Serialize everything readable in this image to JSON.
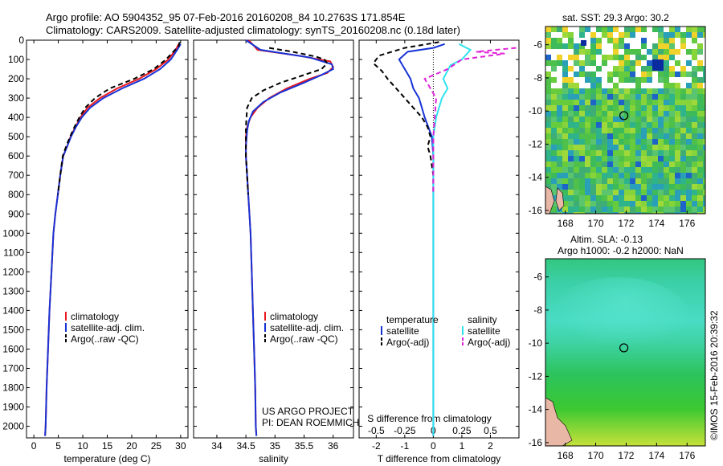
{
  "title_line1": "Argo profile: AO 5904352_95 07-Feb-2016 20160208_84 10.2763S 171.854E",
  "title_line2": "Climatology: CARS2009. Satellite-adjusted climatology: synTS_20160208.nc (0.18d later)",
  "credits": {
    "line1": "US ARGO PROJECT",
    "line2": "PI: DEAN ROEMMICH"
  },
  "side_stamp": "©IMOS 15-Feb-2016 20:39:32",
  "colors": {
    "climatology": "#e8191f",
    "satellite": "#1733d6",
    "argo": "#000000",
    "sal_satellite": "#2fe3ee",
    "sal_argo": "#e021d8"
  },
  "chart_data": [
    {
      "type": "line",
      "xlabel": "temperature (deg C)",
      "ylabel": "",
      "xlim": [
        -1.5,
        31.5
      ],
      "ylim": [
        2060,
        0
      ],
      "xticks": [
        0,
        5,
        10,
        15,
        20,
        25,
        30
      ],
      "yticks": [
        0,
        100,
        200,
        300,
        400,
        500,
        600,
        700,
        800,
        900,
        1000,
        1100,
        1200,
        1300,
        1400,
        1500,
        1600,
        1700,
        1800,
        1900,
        2000
      ],
      "legend": {
        "placement": "lower-left",
        "entries": [
          "climatology",
          "satellite-adj. clim.",
          "Argo(..raw -QC)"
        ]
      },
      "series": [
        {
          "name": "climatology",
          "color": "#e8191f",
          "dash": "solid",
          "points": [
            [
              29.6,
              20
            ],
            [
              29.0,
              50
            ],
            [
              27.5,
              100
            ],
            [
              25.0,
              150
            ],
            [
              21.5,
              200
            ],
            [
              17.0,
              250
            ],
            [
              13.5,
              300
            ],
            [
              11.0,
              350
            ],
            [
              9.5,
              400
            ],
            [
              8.5,
              450
            ],
            [
              7.5,
              500
            ],
            [
              6.8,
              550
            ],
            [
              6.0,
              600
            ],
            [
              5.4,
              700
            ],
            [
              4.9,
              800
            ],
            [
              4.4,
              900
            ],
            [
              4.0,
              1000
            ],
            [
              3.6,
              1200
            ],
            [
              3.2,
              1400
            ],
            [
              2.9,
              1600
            ],
            [
              2.6,
              1800
            ],
            [
              2.4,
              2000
            ],
            [
              2.3,
              2050
            ]
          ]
        },
        {
          "name": "satellite-adj. clim.",
          "color": "#1733d6",
          "dash": "solid",
          "points": [
            [
              30.0,
              20
            ],
            [
              29.3,
              50
            ],
            [
              28.0,
              100
            ],
            [
              25.8,
              150
            ],
            [
              22.5,
              200
            ],
            [
              18.0,
              250
            ],
            [
              14.2,
              300
            ],
            [
              11.5,
              350
            ],
            [
              9.8,
              400
            ],
            [
              8.6,
              450
            ],
            [
              7.6,
              500
            ],
            [
              6.8,
              550
            ],
            [
              6.0,
              600
            ],
            [
              5.4,
              700
            ],
            [
              4.9,
              800
            ],
            [
              4.4,
              900
            ],
            [
              4.0,
              1000
            ],
            [
              3.6,
              1200
            ],
            [
              3.2,
              1400
            ],
            [
              2.9,
              1600
            ],
            [
              2.6,
              1800
            ],
            [
              2.4,
              2000
            ],
            [
              2.3,
              2050
            ]
          ]
        },
        {
          "name": "Argo(..raw -QC)",
          "color": "#000000",
          "dash": "dash",
          "points": [
            [
              29.8,
              10
            ],
            [
              29.6,
              30
            ],
            [
              28.5,
              60
            ],
            [
              27.0,
              100
            ],
            [
              24.5,
              150
            ],
            [
              20.5,
              200
            ],
            [
              15.5,
              250
            ],
            [
              12.5,
              300
            ],
            [
              10.5,
              350
            ],
            [
              9.3,
              400
            ],
            [
              8.3,
              450
            ],
            [
              7.4,
              500
            ],
            [
              6.6,
              550
            ],
            [
              5.9,
              600
            ],
            [
              5.4,
              700
            ],
            [
              4.9,
              800
            ]
          ]
        }
      ]
    },
    {
      "type": "line",
      "xlabel": "salinity",
      "ylabel": "",
      "xlim": [
        33.6,
        36.35
      ],
      "ylim": [
        2060,
        0
      ],
      "xticks": [
        34,
        34.5,
        35,
        35.5,
        36
      ],
      "xtick_labels": [
        "34",
        "34.5",
        "35",
        "35.5",
        "36"
      ],
      "legend": {
        "placement": "lower-right",
        "entries": [
          "climatology",
          "satellite-adj. clim.",
          "Argo(..raw -QC)"
        ]
      },
      "series": [
        {
          "name": "climatology",
          "color": "#e8191f",
          "dash": "solid",
          "points": [
            [
              34.55,
              0
            ],
            [
              34.7,
              50
            ],
            [
              35.4,
              80
            ],
            [
              35.95,
              110
            ],
            [
              36.0,
              140
            ],
            [
              35.9,
              170
            ],
            [
              35.6,
              200
            ],
            [
              35.2,
              250
            ],
            [
              34.9,
              300
            ],
            [
              34.7,
              350
            ],
            [
              34.58,
              400
            ],
            [
              34.52,
              450
            ],
            [
              34.5,
              500
            ],
            [
              34.5,
              600
            ],
            [
              34.52,
              700
            ],
            [
              34.54,
              800
            ],
            [
              34.56,
              900
            ],
            [
              34.58,
              1000
            ],
            [
              34.6,
              1200
            ],
            [
              34.62,
              1400
            ],
            [
              34.64,
              1600
            ],
            [
              34.66,
              1800
            ],
            [
              34.67,
              2000
            ],
            [
              34.68,
              2050
            ]
          ]
        },
        {
          "name": "satellite-adj. clim.",
          "color": "#1733d6",
          "dash": "solid",
          "points": [
            [
              34.5,
              0
            ],
            [
              34.75,
              50
            ],
            [
              35.6,
              90
            ],
            [
              35.98,
              125
            ],
            [
              36.0,
              150
            ],
            [
              35.8,
              180
            ],
            [
              35.5,
              220
            ],
            [
              35.1,
              270
            ],
            [
              34.8,
              320
            ],
            [
              34.62,
              370
            ],
            [
              34.55,
              420
            ],
            [
              34.52,
              470
            ],
            [
              34.5,
              550
            ],
            [
              34.5,
              600
            ],
            [
              34.52,
              700
            ],
            [
              34.54,
              800
            ],
            [
              34.56,
              900
            ],
            [
              34.58,
              1000
            ],
            [
              34.6,
              1200
            ],
            [
              34.62,
              1400
            ],
            [
              34.64,
              1600
            ],
            [
              34.66,
              1800
            ],
            [
              34.67,
              2000
            ],
            [
              34.68,
              2050
            ]
          ]
        },
        {
          "name": "Argo(..raw -QC)",
          "color": "#000000",
          "dash": "dash",
          "points": [
            [
              34.9,
              40
            ],
            [
              35.3,
              60
            ],
            [
              35.7,
              85
            ],
            [
              35.85,
              100
            ],
            [
              35.9,
              120
            ],
            [
              35.8,
              150
            ],
            [
              35.5,
              180
            ],
            [
              35.1,
              220
            ],
            [
              34.8,
              260
            ],
            [
              34.6,
              300
            ],
            [
              34.52,
              350
            ],
            [
              34.5,
              450
            ],
            [
              34.5,
              600
            ],
            [
              34.52,
              700
            ],
            [
              34.54,
              800
            ]
          ]
        }
      ]
    },
    {
      "type": "line",
      "xlabel": "T difference from climatology",
      "top_xlabel": "S difference from climatology",
      "ylabel": "",
      "xlim": [
        -2.6,
        3.0
      ],
      "ylim": [
        2060,
        0
      ],
      "xticks": [
        -2,
        -1,
        0,
        1,
        2
      ],
      "xtick_labels": [
        "-2",
        "-1",
        "0",
        "1",
        "2"
      ],
      "top_ticks": [
        -0.5,
        -0.25,
        0,
        0.25,
        0.5
      ],
      "top_tick_labels": [
        "-0.5",
        "-0.25",
        "0",
        "0.25",
        "0.5"
      ],
      "legend": {
        "placement": "lower-center",
        "temperature_header": "temperature",
        "salinity_header": "salinity",
        "entries": [
          "satellite",
          "Argo(-adj)",
          "satellite",
          "Argo(-adj)"
        ]
      },
      "series": [
        {
          "name": "satellite",
          "group": "temperature",
          "color": "#1733d6",
          "dash": "solid",
          "points": [
            [
              0.4,
              20
            ],
            [
              0.0,
              40
            ],
            [
              -0.9,
              60
            ],
            [
              -1.2,
              100
            ],
            [
              -1.0,
              150
            ],
            [
              -0.8,
              200
            ],
            [
              -0.7,
              250
            ],
            [
              -0.5,
              300
            ],
            [
              -0.3,
              400
            ],
            [
              -0.05,
              500
            ],
            [
              0.0,
              600
            ],
            [
              0.0,
              800
            ],
            [
              0.0,
              1200
            ],
            [
              0.0,
              2050
            ]
          ]
        },
        {
          "name": "Argo(-adj)",
          "group": "temperature",
          "color": "#000000",
          "dash": "dash",
          "points": [
            [
              0.2,
              10
            ],
            [
              -1.0,
              40
            ],
            [
              -1.9,
              80
            ],
            [
              -2.1,
              120
            ],
            [
              -1.8,
              160
            ],
            [
              -1.6,
              200
            ],
            [
              -1.3,
              250
            ],
            [
              -1.0,
              300
            ],
            [
              -0.7,
              350
            ],
            [
              -0.4,
              400
            ],
            [
              -0.2,
              450
            ],
            [
              -0.1,
              500
            ],
            [
              -0.2,
              550
            ],
            [
              -0.1,
              600
            ],
            [
              0.0,
              700
            ],
            [
              0.0,
              800
            ]
          ]
        },
        {
          "name": "satellite",
          "group": "salinity",
          "color": "#2fe3ee",
          "dash": "solid",
          "points": [
            [
              0.9,
              20
            ],
            [
              1.3,
              50
            ],
            [
              1.0,
              100
            ],
            [
              0.6,
              130
            ],
            [
              0.35,
              200
            ],
            [
              0.5,
              250
            ],
            [
              0.3,
              300
            ],
            [
              0.1,
              400
            ],
            [
              0.0,
              500
            ],
            [
              0.0,
              800
            ],
            [
              0.0,
              1200
            ],
            [
              0.0,
              2050
            ]
          ]
        },
        {
          "name": "Argo(-adj)",
          "group": "salinity",
          "color": "#e021d8",
          "dash": "dash",
          "points": [
            [
              2.9,
              40
            ],
            [
              1.5,
              60
            ],
            [
              2.5,
              70
            ],
            [
              1.0,
              100
            ],
            [
              0.5,
              150
            ],
            [
              -0.3,
              200
            ],
            [
              -0.1,
              250
            ],
            [
              0.1,
              300
            ],
            [
              0.05,
              400
            ],
            [
              0.0,
              500
            ],
            [
              0.0,
              600
            ],
            [
              0.0,
              800
            ]
          ]
        }
      ]
    },
    {
      "type": "heatmap",
      "title": "sat. SST: 29.3 Argo: 30.2",
      "xlim": [
        166.7,
        177.2
      ],
      "ylim": [
        -16.2,
        -4.9
      ],
      "xticks": [
        168,
        170,
        172,
        174,
        176
      ],
      "yticks": [
        -6,
        -8,
        -10,
        -12,
        -14,
        -16
      ],
      "marker": [
        171.85,
        -10.28
      ]
    },
    {
      "type": "heatmap",
      "title": "Altim. SLA: -0.13",
      "subtitle": "Argo h1000: -0.2 h2000: NaN",
      "xlim": [
        166.7,
        177.2
      ],
      "ylim": [
        -16.2,
        -4.9
      ],
      "xticks": [
        168,
        170,
        172,
        174,
        176
      ],
      "yticks": [
        -6,
        -8,
        -10,
        -12,
        -14,
        -16
      ],
      "marker": [
        171.85,
        -10.28
      ]
    }
  ]
}
